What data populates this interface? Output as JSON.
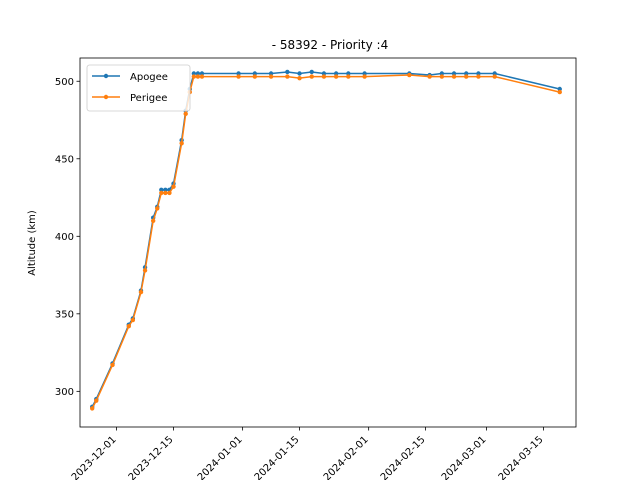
{
  "chart_data": {
    "type": "line",
    "title": "- 58392 - Priority :4",
    "xlabel": "",
    "ylabel": "Altitude (km)",
    "x_ticks": [
      "2023-12-01",
      "2023-12-15",
      "2024-01-01",
      "2024-01-15",
      "2024-02-01",
      "2024-02-15",
      "2024-03-01",
      "2024-03-15"
    ],
    "y_ticks": [
      300,
      350,
      400,
      450,
      500
    ],
    "ylim": [
      277,
      515
    ],
    "xlim": [
      "2023-11-22",
      "2024-03-23"
    ],
    "grid": false,
    "legend": "top-left",
    "series": [
      {
        "name": "Apogee",
        "color": "#1f77b4",
        "points": [
          [
            "2023-11-25",
            290
          ],
          [
            "2023-11-26",
            295
          ],
          [
            "2023-11-30",
            318
          ],
          [
            "2023-12-04",
            343
          ],
          [
            "2023-12-05",
            347
          ],
          [
            "2023-12-07",
            365
          ],
          [
            "2023-12-08",
            380
          ],
          [
            "2023-12-10",
            412
          ],
          [
            "2023-12-11",
            419
          ],
          [
            "2023-12-12",
            430
          ],
          [
            "2023-12-13",
            430
          ],
          [
            "2023-12-14",
            430
          ],
          [
            "2023-12-15",
            434
          ],
          [
            "2023-12-17",
            462
          ],
          [
            "2023-12-18",
            481
          ],
          [
            "2023-12-19",
            495
          ],
          [
            "2023-12-20",
            505
          ],
          [
            "2023-12-21",
            505
          ],
          [
            "2023-12-22",
            505
          ],
          [
            "2023-12-31",
            505
          ],
          [
            "2024-01-04",
            505
          ],
          [
            "2024-01-08",
            505
          ],
          [
            "2024-01-12",
            506
          ],
          [
            "2024-01-15",
            505
          ],
          [
            "2024-01-18",
            506
          ],
          [
            "2024-01-21",
            505
          ],
          [
            "2024-01-24",
            505
          ],
          [
            "2024-01-27",
            505
          ],
          [
            "2024-01-31",
            505
          ],
          [
            "2024-02-11",
            505
          ],
          [
            "2024-02-16",
            504
          ],
          [
            "2024-02-19",
            505
          ],
          [
            "2024-02-22",
            505
          ],
          [
            "2024-02-25",
            505
          ],
          [
            "2024-02-28",
            505
          ],
          [
            "2024-03-03",
            505
          ],
          [
            "2024-03-19",
            495
          ]
        ]
      },
      {
        "name": "Perigee",
        "color": "#ff7f0e",
        "points": [
          [
            "2023-11-25",
            289
          ],
          [
            "2023-11-26",
            294
          ],
          [
            "2023-11-30",
            317
          ],
          [
            "2023-12-04",
            342
          ],
          [
            "2023-12-05",
            346
          ],
          [
            "2023-12-07",
            364
          ],
          [
            "2023-12-08",
            378
          ],
          [
            "2023-12-10",
            410
          ],
          [
            "2023-12-11",
            418
          ],
          [
            "2023-12-12",
            428
          ],
          [
            "2023-12-13",
            428
          ],
          [
            "2023-12-14",
            428
          ],
          [
            "2023-12-15",
            432
          ],
          [
            "2023-12-17",
            460
          ],
          [
            "2023-12-18",
            479
          ],
          [
            "2023-12-19",
            493
          ],
          [
            "2023-12-20",
            503
          ],
          [
            "2023-12-21",
            503
          ],
          [
            "2023-12-22",
            503
          ],
          [
            "2023-12-31",
            503
          ],
          [
            "2024-01-04",
            503
          ],
          [
            "2024-01-08",
            503
          ],
          [
            "2024-01-12",
            503
          ],
          [
            "2024-01-15",
            502
          ],
          [
            "2024-01-18",
            503
          ],
          [
            "2024-01-21",
            503
          ],
          [
            "2024-01-24",
            503
          ],
          [
            "2024-01-27",
            503
          ],
          [
            "2024-01-31",
            503
          ],
          [
            "2024-02-11",
            504
          ],
          [
            "2024-02-16",
            503
          ],
          [
            "2024-02-19",
            503
          ],
          [
            "2024-02-22",
            503
          ],
          [
            "2024-02-25",
            503
          ],
          [
            "2024-02-28",
            503
          ],
          [
            "2024-03-03",
            503
          ],
          [
            "2024-03-19",
            493
          ]
        ]
      }
    ]
  }
}
